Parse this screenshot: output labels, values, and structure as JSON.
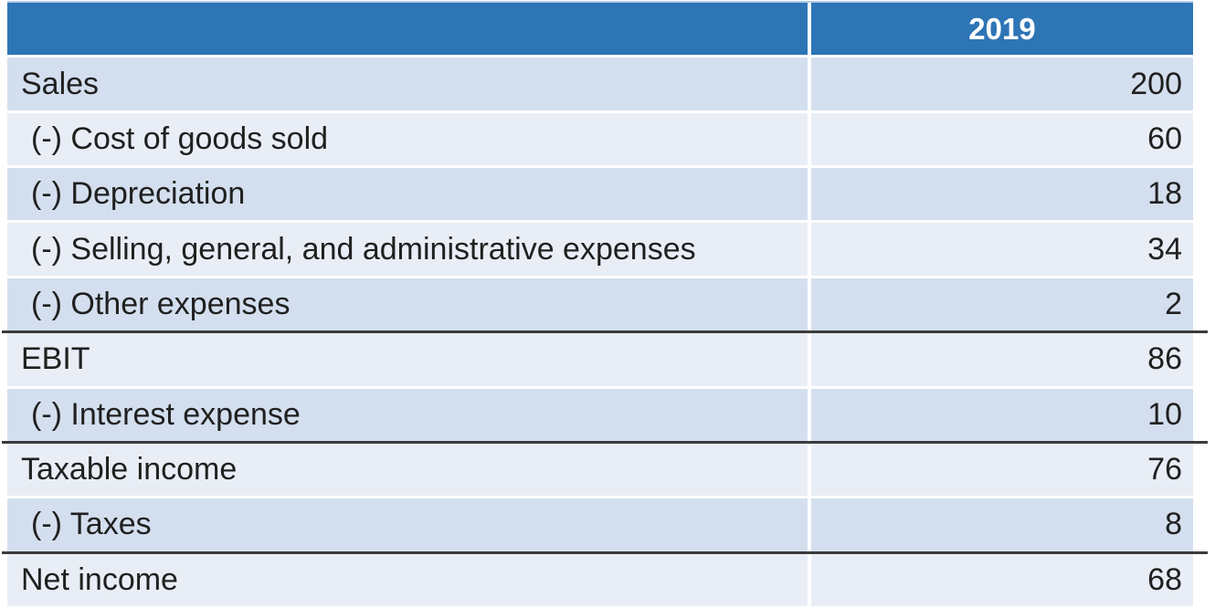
{
  "colors": {
    "header_bg": "#2E75B5",
    "row_dark": "#D3DFEE",
    "row_light": "#E9EEF6",
    "text": "#202020",
    "divider": "#3B3B3B",
    "top_accent": "#AECBE8"
  },
  "table": {
    "header": {
      "year": "2019"
    },
    "rows": [
      {
        "label": "Sales",
        "value": "200",
        "indent": false,
        "shade": "dark",
        "top_border": false
      },
      {
        "label": "(-) Cost of goods sold",
        "value": "60",
        "indent": true,
        "shade": "light",
        "top_border": false
      },
      {
        "label": "(-) Depreciation",
        "value": "18",
        "indent": true,
        "shade": "dark",
        "top_border": false
      },
      {
        "label": "(-) Selling, general, and administrative expenses",
        "value": "34",
        "indent": true,
        "shade": "light",
        "top_border": false
      },
      {
        "label": "(-) Other expenses",
        "value": "2",
        "indent": true,
        "shade": "dark",
        "top_border": false
      },
      {
        "label": "EBIT",
        "value": "86",
        "indent": false,
        "shade": "light",
        "top_border": true
      },
      {
        "label": "(-) Interest expense",
        "value": "10",
        "indent": true,
        "shade": "dark",
        "top_border": false
      },
      {
        "label": "Taxable income",
        "value": "76",
        "indent": false,
        "shade": "light",
        "top_border": true
      },
      {
        "label": "(-) Taxes",
        "value": "8",
        "indent": true,
        "shade": "dark",
        "top_border": false
      },
      {
        "label": "Net income",
        "value": "68",
        "indent": false,
        "shade": "light",
        "top_border": true
      }
    ]
  }
}
